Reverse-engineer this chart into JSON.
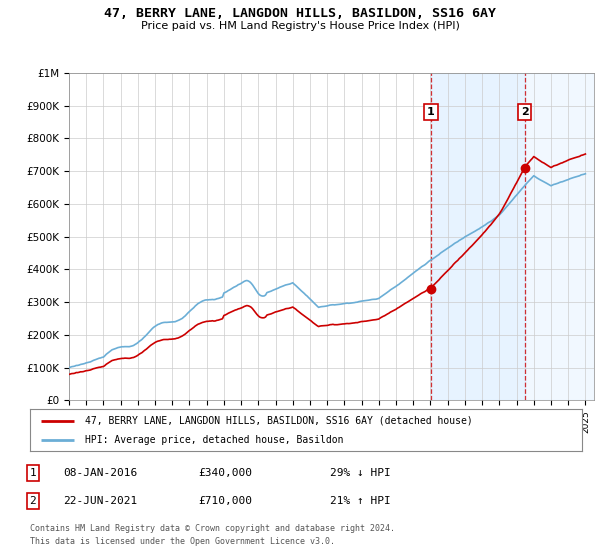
{
  "title": "47, BERRY LANE, LANGDON HILLS, BASILDON, SS16 6AY",
  "subtitle": "Price paid vs. HM Land Registry's House Price Index (HPI)",
  "ylim": [
    0,
    1000000
  ],
  "yticks": [
    0,
    100000,
    200000,
    300000,
    400000,
    500000,
    600000,
    700000,
    800000,
    900000,
    1000000
  ],
  "ytick_labels": [
    "£0",
    "£100K",
    "£200K",
    "£300K",
    "£400K",
    "£500K",
    "£600K",
    "£700K",
    "£800K",
    "£900K",
    "£1M"
  ],
  "hpi_color": "#6baed6",
  "price_color": "#cc0000",
  "dot_color": "#cc0000",
  "annotation_box_color": "#cc0000",
  "vline_color": "#cc0000",
  "shaded_color": "#ddeeff",
  "t1_year": 2016.03,
  "t1_price": 340000,
  "t2_year": 2021.47,
  "t2_price": 710000,
  "legend_label_red": "47, BERRY LANE, LANGDON HILLS, BASILDON, SS16 6AY (detached house)",
  "legend_label_blue": "HPI: Average price, detached house, Basildon",
  "footer1": "Contains HM Land Registry data © Crown copyright and database right 2024.",
  "footer2": "This data is licensed under the Open Government Licence v3.0.",
  "table": [
    {
      "num": "1",
      "date": "08-JAN-2016",
      "price": "£340,000",
      "change": "29% ↓ HPI"
    },
    {
      "num": "2",
      "date": "22-JUN-2021",
      "price": "£710,000",
      "change": "21% ↑ HPI"
    }
  ]
}
